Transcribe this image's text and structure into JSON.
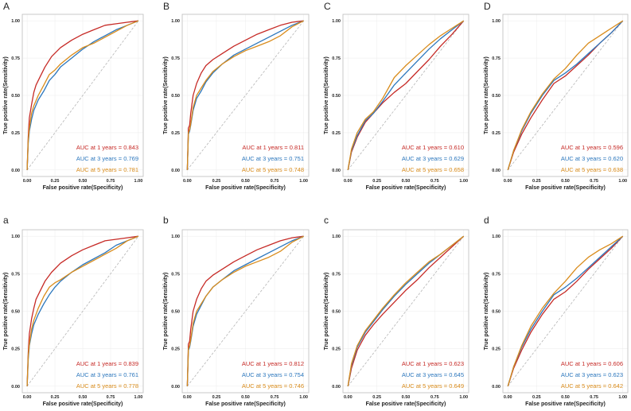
{
  "colors": {
    "red": "#c62a26",
    "blue": "#2c77bd",
    "orange": "#d98c1c"
  },
  "axes": {
    "xlabel": "False positive rate(Specificity)",
    "ylabel": "True positive rate(Sensitivity)",
    "ticks": [
      "0.00",
      "0.25",
      "0.50",
      "0.75",
      "1.00"
    ]
  },
  "chart_data": [
    {
      "type": "line",
      "panel": "A",
      "xlim": [
        0,
        1
      ],
      "ylim": [
        0,
        1
      ],
      "series": [
        {
          "name": "AUC at 1 years = 0.843",
          "color": "red",
          "x": [
            0,
            0.01,
            0.02,
            0.04,
            0.06,
            0.08,
            0.12,
            0.16,
            0.22,
            0.3,
            0.4,
            0.5,
            0.6,
            0.7,
            0.8,
            0.9,
            1.0
          ],
          "y": [
            0,
            0.22,
            0.35,
            0.44,
            0.52,
            0.57,
            0.63,
            0.69,
            0.76,
            0.82,
            0.87,
            0.91,
            0.94,
            0.97,
            0.98,
            0.99,
            1.0
          ]
        },
        {
          "name": "AUC at 3 years = 0.769",
          "color": "blue",
          "x": [
            0,
            0.01,
            0.02,
            0.04,
            0.06,
            0.1,
            0.15,
            0.2,
            0.25,
            0.3,
            0.4,
            0.5,
            0.6,
            0.7,
            0.8,
            0.9,
            1.0
          ],
          "y": [
            0,
            0.18,
            0.26,
            0.34,
            0.4,
            0.47,
            0.53,
            0.6,
            0.64,
            0.69,
            0.75,
            0.81,
            0.86,
            0.9,
            0.94,
            0.97,
            1.0
          ]
        },
        {
          "name": "AUC at 5 years = 0.781",
          "color": "orange",
          "x": [
            0,
            0.01,
            0.02,
            0.04,
            0.06,
            0.1,
            0.15,
            0.2,
            0.25,
            0.3,
            0.4,
            0.5,
            0.6,
            0.7,
            0.8,
            0.9,
            1.0
          ],
          "y": [
            0,
            0.2,
            0.28,
            0.38,
            0.43,
            0.5,
            0.57,
            0.64,
            0.67,
            0.71,
            0.77,
            0.82,
            0.85,
            0.89,
            0.93,
            0.97,
            1.0
          ]
        }
      ]
    },
    {
      "type": "line",
      "panel": "B",
      "xlim": [
        0,
        1
      ],
      "ylim": [
        0,
        1
      ],
      "series": [
        {
          "name": "AUC at 1 years = 0.811",
          "color": "red",
          "x": [
            0,
            0.01,
            0.02,
            0.03,
            0.05,
            0.08,
            0.12,
            0.16,
            0.22,
            0.3,
            0.4,
            0.5,
            0.6,
            0.7,
            0.8,
            0.9,
            1.0
          ],
          "y": [
            0,
            0.28,
            0.3,
            0.38,
            0.5,
            0.58,
            0.65,
            0.7,
            0.74,
            0.78,
            0.83,
            0.87,
            0.91,
            0.94,
            0.97,
            0.99,
            1.0
          ]
        },
        {
          "name": "AUC at 3 years = 0.751",
          "color": "blue",
          "x": [
            0,
            0.01,
            0.02,
            0.03,
            0.05,
            0.08,
            0.12,
            0.16,
            0.22,
            0.3,
            0.4,
            0.5,
            0.6,
            0.7,
            0.8,
            0.9,
            1.0
          ],
          "y": [
            0,
            0.24,
            0.26,
            0.3,
            0.4,
            0.48,
            0.53,
            0.59,
            0.65,
            0.71,
            0.77,
            0.81,
            0.85,
            0.89,
            0.93,
            0.97,
            1.0
          ]
        },
        {
          "name": "AUC at 5 years = 0.748",
          "color": "orange",
          "x": [
            0,
            0.01,
            0.02,
            0.03,
            0.05,
            0.08,
            0.12,
            0.16,
            0.22,
            0.3,
            0.4,
            0.5,
            0.6,
            0.7,
            0.8,
            0.9,
            1.0
          ],
          "y": [
            0,
            0.25,
            0.27,
            0.31,
            0.42,
            0.5,
            0.55,
            0.6,
            0.66,
            0.71,
            0.76,
            0.8,
            0.83,
            0.86,
            0.9,
            0.96,
            1.0
          ]
        }
      ]
    },
    {
      "type": "line",
      "panel": "C",
      "xlim": [
        0,
        1
      ],
      "ylim": [
        0,
        1
      ],
      "series": [
        {
          "name": "AUC at 1 years = 0.610",
          "color": "red",
          "x": [
            0,
            0.03,
            0.08,
            0.15,
            0.22,
            0.3,
            0.4,
            0.5,
            0.6,
            0.7,
            0.8,
            0.9,
            1.0
          ],
          "y": [
            0,
            0.12,
            0.22,
            0.32,
            0.38,
            0.45,
            0.52,
            0.58,
            0.66,
            0.74,
            0.83,
            0.91,
            1.0
          ]
        },
        {
          "name": "AUC at 3 years = 0.629",
          "color": "blue",
          "x": [
            0,
            0.03,
            0.08,
            0.15,
            0.22,
            0.3,
            0.4,
            0.5,
            0.6,
            0.7,
            0.8,
            0.9,
            1.0
          ],
          "y": [
            0,
            0.13,
            0.23,
            0.33,
            0.38,
            0.46,
            0.57,
            0.65,
            0.73,
            0.81,
            0.88,
            0.94,
            1.0
          ]
        },
        {
          "name": "AUC at 5 years = 0.658",
          "color": "orange",
          "x": [
            0,
            0.03,
            0.08,
            0.15,
            0.22,
            0.3,
            0.4,
            0.5,
            0.6,
            0.7,
            0.8,
            0.9,
            1.0
          ],
          "y": [
            0,
            0.14,
            0.25,
            0.34,
            0.39,
            0.48,
            0.62,
            0.7,
            0.77,
            0.84,
            0.9,
            0.95,
            1.0
          ]
        }
      ]
    },
    {
      "type": "line",
      "panel": "D",
      "xlim": [
        0,
        1
      ],
      "ylim": [
        0,
        1
      ],
      "series": [
        {
          "name": "AUC at 1 years = 0.596",
          "color": "red",
          "x": [
            0,
            0.05,
            0.12,
            0.2,
            0.3,
            0.4,
            0.5,
            0.6,
            0.7,
            0.8,
            0.9,
            1.0
          ],
          "y": [
            0,
            0.12,
            0.24,
            0.35,
            0.47,
            0.58,
            0.63,
            0.7,
            0.77,
            0.85,
            0.92,
            1.0
          ]
        },
        {
          "name": "AUC at 3 years = 0.620",
          "color": "blue",
          "x": [
            0,
            0.05,
            0.12,
            0.2,
            0.3,
            0.4,
            0.5,
            0.6,
            0.7,
            0.8,
            0.9,
            1.0
          ],
          "y": [
            0,
            0.13,
            0.26,
            0.38,
            0.5,
            0.6,
            0.65,
            0.71,
            0.78,
            0.85,
            0.92,
            1.0
          ]
        },
        {
          "name": "AUC at 5 years = 0.638",
          "color": "orange",
          "x": [
            0,
            0.05,
            0.12,
            0.2,
            0.3,
            0.4,
            0.5,
            0.6,
            0.7,
            0.8,
            0.9,
            1.0
          ],
          "y": [
            0,
            0.13,
            0.27,
            0.39,
            0.51,
            0.61,
            0.68,
            0.77,
            0.85,
            0.9,
            0.95,
            1.0
          ]
        }
      ]
    },
    {
      "type": "line",
      "panel": "a",
      "xlim": [
        0,
        1
      ],
      "ylim": [
        0,
        1
      ],
      "series": [
        {
          "name": "AUC at 1 years = 0.839",
          "color": "red",
          "x": [
            0,
            0.01,
            0.02,
            0.04,
            0.06,
            0.08,
            0.12,
            0.16,
            0.22,
            0.3,
            0.4,
            0.5,
            0.6,
            0.7,
            0.8,
            0.9,
            1.0
          ],
          "y": [
            0,
            0.22,
            0.35,
            0.45,
            0.52,
            0.58,
            0.64,
            0.7,
            0.76,
            0.82,
            0.87,
            0.91,
            0.94,
            0.97,
            0.98,
            0.99,
            1.0
          ]
        },
        {
          "name": "AUC at 3 years = 0.761",
          "color": "blue",
          "x": [
            0,
            0.01,
            0.02,
            0.04,
            0.06,
            0.1,
            0.15,
            0.2,
            0.25,
            0.3,
            0.4,
            0.5,
            0.6,
            0.7,
            0.8,
            0.9,
            1.0
          ],
          "y": [
            0,
            0.18,
            0.27,
            0.35,
            0.41,
            0.48,
            0.55,
            0.61,
            0.66,
            0.7,
            0.76,
            0.81,
            0.85,
            0.89,
            0.94,
            0.97,
            1.0
          ]
        },
        {
          "name": "AUC at 5 years = 0.778",
          "color": "orange",
          "x": [
            0,
            0.01,
            0.02,
            0.04,
            0.06,
            0.1,
            0.15,
            0.2,
            0.25,
            0.3,
            0.4,
            0.5,
            0.6,
            0.7,
            0.8,
            0.9,
            1.0
          ],
          "y": [
            0,
            0.2,
            0.28,
            0.38,
            0.44,
            0.52,
            0.6,
            0.66,
            0.69,
            0.71,
            0.76,
            0.8,
            0.84,
            0.88,
            0.92,
            0.97,
            1.0
          ]
        }
      ]
    },
    {
      "type": "line",
      "panel": "b",
      "xlim": [
        0,
        1
      ],
      "ylim": [
        0,
        1
      ],
      "series": [
        {
          "name": "AUC at 1 years = 0.812",
          "color": "red",
          "x": [
            0,
            0.01,
            0.02,
            0.03,
            0.05,
            0.08,
            0.12,
            0.16,
            0.22,
            0.3,
            0.4,
            0.5,
            0.6,
            0.7,
            0.8,
            0.9,
            1.0
          ],
          "y": [
            0,
            0.28,
            0.3,
            0.38,
            0.5,
            0.58,
            0.65,
            0.7,
            0.74,
            0.78,
            0.83,
            0.87,
            0.91,
            0.94,
            0.97,
            0.99,
            1.0
          ]
        },
        {
          "name": "AUC at 3 years = 0.754",
          "color": "blue",
          "x": [
            0,
            0.01,
            0.02,
            0.03,
            0.05,
            0.08,
            0.12,
            0.16,
            0.22,
            0.3,
            0.4,
            0.5,
            0.6,
            0.7,
            0.8,
            0.9,
            1.0
          ],
          "y": [
            0,
            0.24,
            0.26,
            0.3,
            0.4,
            0.48,
            0.54,
            0.6,
            0.66,
            0.71,
            0.77,
            0.81,
            0.85,
            0.89,
            0.93,
            0.97,
            1.0
          ]
        },
        {
          "name": "AUC at 5 years = 0.746",
          "color": "orange",
          "x": [
            0,
            0.01,
            0.02,
            0.03,
            0.05,
            0.08,
            0.12,
            0.16,
            0.22,
            0.3,
            0.4,
            0.5,
            0.6,
            0.7,
            0.8,
            0.9,
            1.0
          ],
          "y": [
            0,
            0.25,
            0.27,
            0.31,
            0.42,
            0.5,
            0.55,
            0.6,
            0.66,
            0.71,
            0.76,
            0.8,
            0.83,
            0.86,
            0.9,
            0.96,
            1.0
          ]
        }
      ]
    },
    {
      "type": "line",
      "panel": "c",
      "xlim": [
        0,
        1
      ],
      "ylim": [
        0,
        1
      ],
      "series": [
        {
          "name": "AUC at 1 years = 0.623",
          "color": "red",
          "x": [
            0,
            0.03,
            0.08,
            0.15,
            0.22,
            0.3,
            0.4,
            0.5,
            0.6,
            0.7,
            0.8,
            0.9,
            1.0
          ],
          "y": [
            0,
            0.12,
            0.24,
            0.34,
            0.41,
            0.48,
            0.56,
            0.64,
            0.71,
            0.79,
            0.86,
            0.93,
            1.0
          ]
        },
        {
          "name": "AUC at 3 years = 0.645",
          "color": "blue",
          "x": [
            0,
            0.03,
            0.08,
            0.15,
            0.22,
            0.3,
            0.4,
            0.5,
            0.6,
            0.7,
            0.8,
            0.9,
            1.0
          ],
          "y": [
            0,
            0.14,
            0.26,
            0.36,
            0.43,
            0.51,
            0.6,
            0.68,
            0.75,
            0.82,
            0.88,
            0.94,
            1.0
          ]
        },
        {
          "name": "AUC at 5 years = 0.649",
          "color": "orange",
          "x": [
            0,
            0.03,
            0.08,
            0.15,
            0.22,
            0.3,
            0.4,
            0.5,
            0.6,
            0.7,
            0.8,
            0.9,
            1.0
          ],
          "y": [
            0,
            0.15,
            0.27,
            0.37,
            0.44,
            0.52,
            0.61,
            0.69,
            0.76,
            0.83,
            0.88,
            0.94,
            1.0
          ]
        }
      ]
    },
    {
      "type": "line",
      "panel": "d",
      "xlim": [
        0,
        1
      ],
      "ylim": [
        0,
        1
      ],
      "series": [
        {
          "name": "AUC at 1 years = 0.606",
          "color": "red",
          "x": [
            0,
            0.05,
            0.12,
            0.2,
            0.3,
            0.4,
            0.5,
            0.6,
            0.7,
            0.8,
            0.9,
            1.0
          ],
          "y": [
            0,
            0.12,
            0.24,
            0.36,
            0.48,
            0.58,
            0.63,
            0.7,
            0.78,
            0.85,
            0.92,
            1.0
          ]
        },
        {
          "name": "AUC at 3 years = 0.623",
          "color": "blue",
          "x": [
            0,
            0.05,
            0.12,
            0.2,
            0.3,
            0.4,
            0.5,
            0.6,
            0.7,
            0.8,
            0.9,
            1.0
          ],
          "y": [
            0,
            0.13,
            0.26,
            0.38,
            0.5,
            0.61,
            0.66,
            0.72,
            0.79,
            0.86,
            0.93,
            1.0
          ]
        },
        {
          "name": "AUC at 5 years = 0.642",
          "color": "orange",
          "x": [
            0,
            0.05,
            0.12,
            0.2,
            0.3,
            0.4,
            0.5,
            0.6,
            0.7,
            0.8,
            0.9,
            1.0
          ],
          "y": [
            0,
            0.13,
            0.27,
            0.4,
            0.52,
            0.62,
            0.7,
            0.79,
            0.86,
            0.91,
            0.95,
            1.0
          ]
        }
      ]
    }
  ]
}
